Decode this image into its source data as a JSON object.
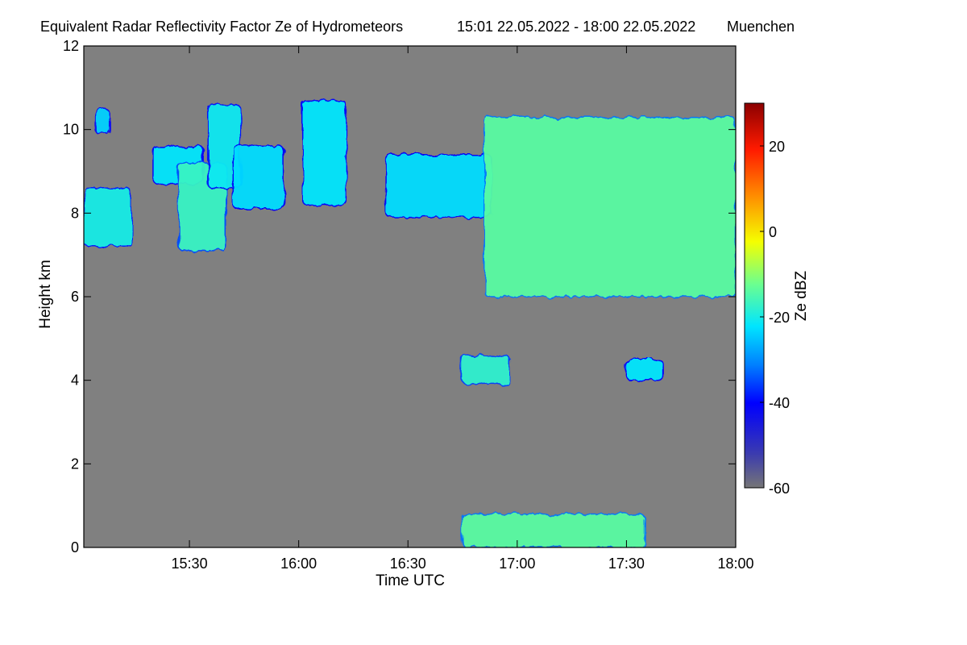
{
  "chart_data": {
    "type": "heatmap",
    "title": "Equivalent Radar Reflectivity Factor Ze of Hydrometeors",
    "period": "15:01 22.05.2022 - 18:00 22.05.2022",
    "location": "Muenchen",
    "xlabel": "Time UTC",
    "ylabel": "Height km",
    "colorbar_label": "Ze dBZ",
    "x_range_minutes_utc": [
      901,
      1080
    ],
    "y_range_km": [
      0,
      12
    ],
    "color_range_dbz": [
      -60,
      30
    ],
    "background_color": "#808080",
    "x_ticks": [
      {
        "minutes": 930,
        "label": "15:30"
      },
      {
        "minutes": 960,
        "label": "16:00"
      },
      {
        "minutes": 990,
        "label": "16:30"
      },
      {
        "minutes": 1020,
        "label": "17:00"
      },
      {
        "minutes": 1050,
        "label": "17:30"
      },
      {
        "minutes": 1080,
        "label": "18:00"
      }
    ],
    "y_ticks": [
      {
        "value": 0,
        "label": "0"
      },
      {
        "value": 2,
        "label": "2"
      },
      {
        "value": 4,
        "label": "4"
      },
      {
        "value": 6,
        "label": "6"
      },
      {
        "value": 8,
        "label": "8"
      },
      {
        "value": 10,
        "label": "10"
      },
      {
        "value": 12,
        "label": "12"
      }
    ],
    "colorbar_ticks": [
      {
        "value": 20,
        "label": "20"
      },
      {
        "value": 0,
        "label": "0"
      },
      {
        "value": -20,
        "label": "-20"
      },
      {
        "value": -40,
        "label": "-40"
      },
      {
        "value": -60,
        "label": "-60"
      }
    ],
    "echo_regions": [
      {
        "name": "cirrus-patch-1",
        "t0": 901,
        "t1": 914,
        "h_bottom": 7.2,
        "h_top": 8.6,
        "ze_dbz": -20
      },
      {
        "name": "cirrus-patch-2",
        "t0": 904,
        "t1": 908,
        "h_bottom": 9.9,
        "h_top": 10.5,
        "ze_dbz": -24
      },
      {
        "name": "cirrus-patch-3",
        "t0": 920,
        "t1": 934,
        "h_bottom": 8.7,
        "h_top": 9.6,
        "ze_dbz": -22
      },
      {
        "name": "cirrus-patch-4",
        "t0": 927,
        "t1": 940,
        "h_bottom": 7.1,
        "h_top": 9.2,
        "ze_dbz": -17
      },
      {
        "name": "cirrus-patch-5",
        "t0": 935,
        "t1": 944,
        "h_bottom": 8.6,
        "h_top": 10.6,
        "ze_dbz": -21
      },
      {
        "name": "cirrus-patch-6",
        "t0": 942,
        "t1": 956,
        "h_bottom": 8.1,
        "h_top": 9.6,
        "ze_dbz": -23
      },
      {
        "name": "cirrus-patch-7",
        "t0": 961,
        "t1": 973,
        "h_bottom": 8.2,
        "h_top": 10.7,
        "ze_dbz": -22
      },
      {
        "name": "cirrus-band-middle",
        "t0": 984,
        "t1": 1013,
        "h_bottom": 7.9,
        "h_top": 9.4,
        "ze_dbz": -23
      },
      {
        "name": "cirrus-deck-east",
        "t0": 1011,
        "t1": 1080,
        "h_bottom": 6.0,
        "h_top": 10.3,
        "ze_dbz": -14
      },
      {
        "name": "midlevel-cell-1",
        "t0": 1005,
        "t1": 1018,
        "h_bottom": 3.9,
        "h_top": 4.6,
        "ze_dbz": -18
      },
      {
        "name": "midlevel-cell-2",
        "t0": 1050,
        "t1": 1060,
        "h_bottom": 4.0,
        "h_top": 4.5,
        "ze_dbz": -22
      },
      {
        "name": "near-surface-clutter",
        "t0": 1005,
        "t1": 1055,
        "h_bottom": 0.0,
        "h_top": 0.8,
        "ze_dbz": -14
      }
    ]
  }
}
